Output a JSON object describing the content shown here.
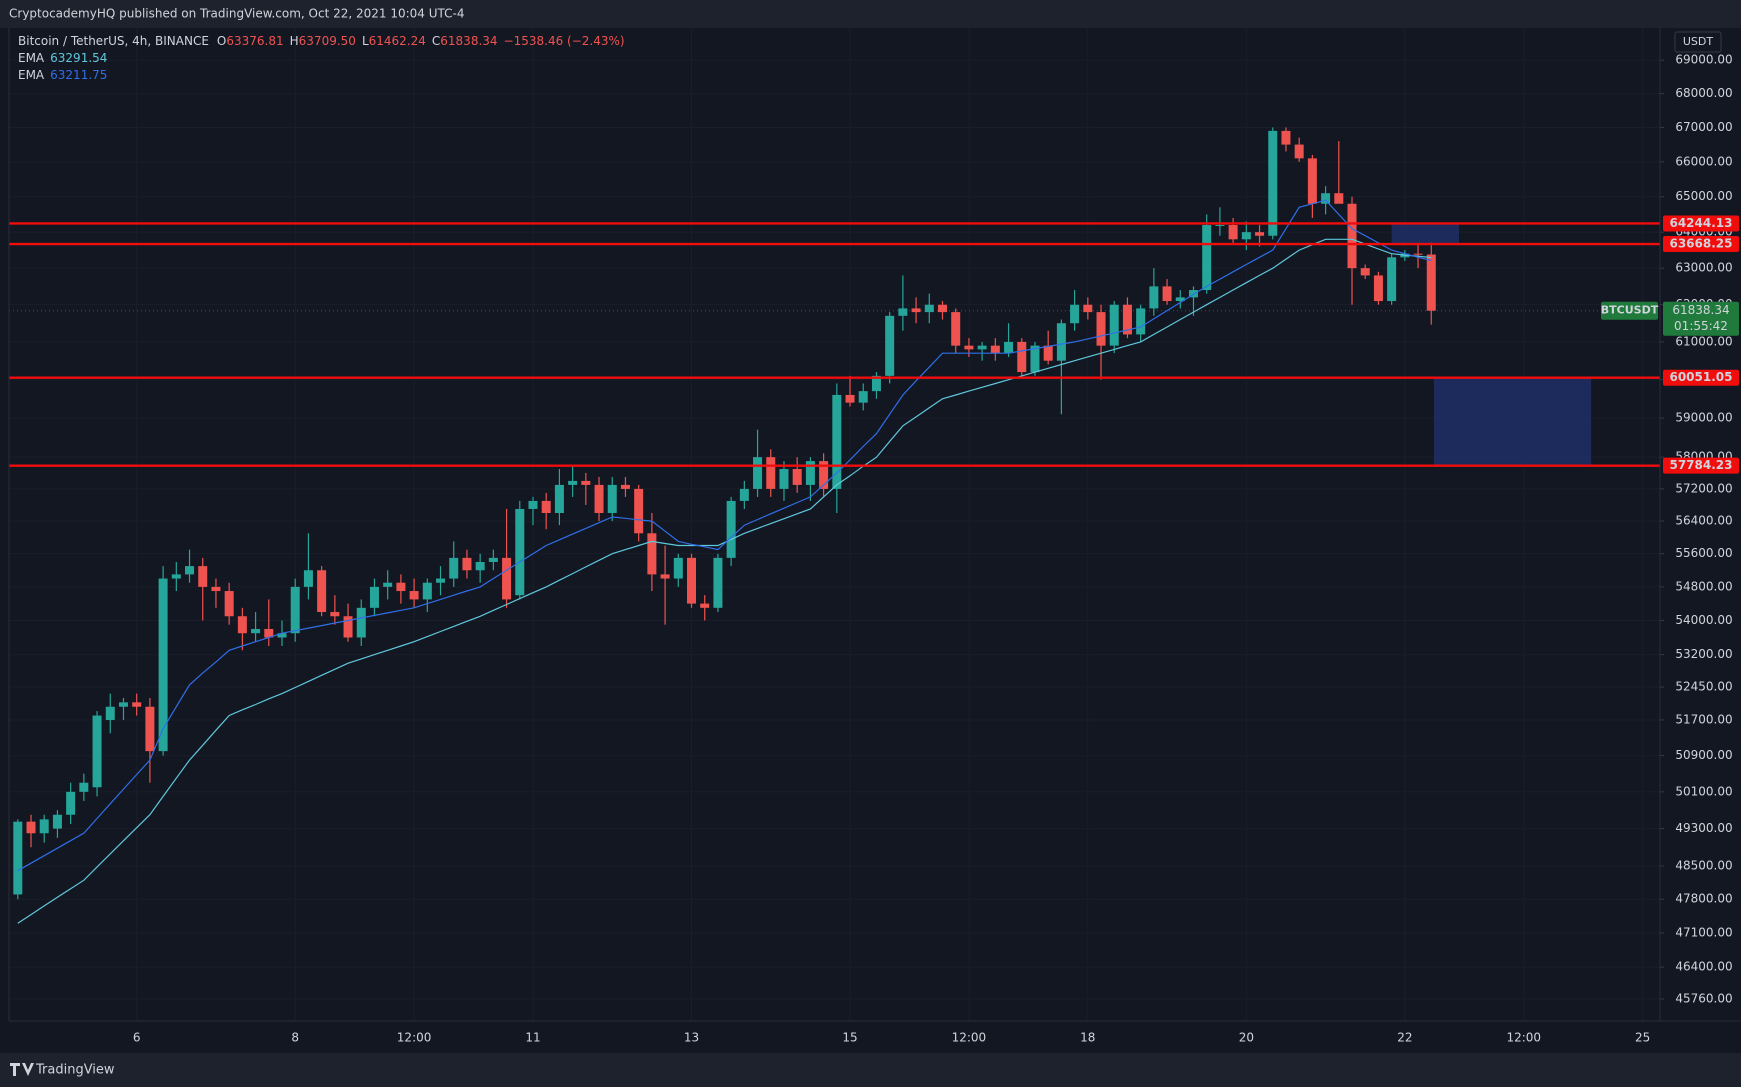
{
  "header": {
    "publisher": "CryptocademyHQ published on TradingView.com, Oct 22, 2021 10:04 UTC-4"
  },
  "footer": {
    "brand": "TradingView"
  },
  "chart_data": {
    "type": "candlestick",
    "symbol": "Bitcoin / TetherUS, 4h, BINANCE",
    "ticker": "BTCUSDT",
    "currency": "USDT",
    "countdown": "01:55:42",
    "ohlc_letters": [
      "O",
      "H",
      "L",
      "C"
    ],
    "ohlc_labels": [
      "63376.81",
      "63709.50",
      "61462.24",
      "61838.34"
    ],
    "change": "−1538.46 (−2.43%)",
    "log_scale": true,
    "up_color": "#26a69a",
    "down_color": "#ef5350",
    "categories": [
      null,
      null,
      null,
      null,
      null,
      null,
      null,
      null,
      null,
      "6",
      null,
      null,
      null,
      null,
      null,
      null,
      null,
      null,
      null,
      null,
      null,
      "8",
      null,
      null,
      null,
      null,
      null,
      null,
      null,
      null,
      "12:00",
      null,
      null,
      null,
      null,
      null,
      null,
      null,
      null,
      "11",
      null,
      null,
      null,
      null,
      null,
      null,
      null,
      null,
      null,
      null,
      null,
      "13",
      null,
      null,
      null,
      null,
      null,
      null,
      null,
      null,
      null,
      null,
      null,
      "15",
      null,
      null,
      null,
      null,
      null,
      null,
      null,
      null,
      "12:00",
      null,
      null,
      null,
      null,
      null,
      null,
      null,
      null,
      "18",
      null,
      null,
      null,
      null,
      null,
      null,
      null,
      null,
      null,
      null,
      null,
      "20",
      null,
      null,
      null,
      null,
      null,
      null,
      null,
      null,
      null,
      null,
      null,
      "22",
      null,
      null,
      null,
      null,
      null,
      null,
      null,
      null,
      "12:00",
      null,
      null,
      null,
      null,
      null,
      null,
      null,
      null,
      "25",
      null
    ],
    "open": [
      47900,
      49450,
      49200,
      49300,
      49600,
      50100,
      50200,
      51700,
      52000,
      52100,
      52000,
      51000,
      55000,
      55100,
      55300,
      54800,
      54700,
      54100,
      53700,
      53800,
      53600,
      53700,
      54800,
      55200,
      54200,
      54100,
      53600,
      54300,
      54800,
      54900,
      54700,
      54500,
      54900,
      55000,
      55500,
      55200,
      55400,
      55500,
      54600,
      56700,
      56900,
      56600,
      57300,
      57400,
      57300,
      56600,
      57300,
      57200,
      56100,
      55100,
      55000,
      55500,
      54400,
      54300,
      55500,
      56900,
      57200,
      58000,
      57200,
      57700,
      57300,
      57900,
      57200,
      59600,
      59400,
      59700,
      60100,
      61700,
      61900,
      61800,
      62000,
      61800,
      60900,
      60800,
      60900,
      60700,
      61000,
      60200,
      60900,
      60500,
      61500,
      62000,
      61800,
      60900,
      62000,
      61200,
      61900,
      62500,
      62100,
      62200,
      62400,
      64200,
      64200,
      63800,
      64000,
      63900,
      66900,
      66500,
      66100,
      64800,
      65100,
      64800,
      63000,
      62800,
      62100,
      63300,
      63400,
      63376.81,
      null,
      null,
      null,
      null,
      null,
      null,
      null,
      null,
      null,
      null,
      null,
      null,
      null,
      null,
      null,
      null,
      null
    ],
    "high": [
      49500,
      49600,
      49600,
      49700,
      50300,
      50500,
      51900,
      52300,
      52200,
      52300,
      52200,
      55300,
      55400,
      55700,
      55500,
      55000,
      54900,
      54300,
      54200,
      54500,
      54000,
      55000,
      56100,
      55300,
      54600,
      54400,
      54500,
      55000,
      55200,
      55100,
      55000,
      55000,
      55300,
      55900,
      55700,
      55600,
      55700,
      56700,
      56900,
      57000,
      57100,
      57700,
      57800,
      57600,
      57500,
      57500,
      57500,
      57300,
      56600,
      55800,
      55600,
      55600,
      54600,
      55600,
      57000,
      57400,
      58700,
      58200,
      57900,
      58000,
      58000,
      58100,
      59900,
      60100,
      59900,
      60200,
      61800,
      62800,
      62200,
      62300,
      62100,
      61900,
      61100,
      61000,
      61100,
      61500,
      61100,
      61000,
      61300,
      61600,
      62400,
      62200,
      62000,
      62100,
      62200,
      62000,
      63000,
      62700,
      62400,
      62500,
      64500,
      64700,
      64400,
      64300,
      64200,
      67000,
      67000,
      66700,
      66200,
      65300,
      66600,
      65000,
      63100,
      62900,
      63400,
      63500,
      63700,
      63709.5,
      null,
      null,
      null,
      null,
      null,
      null,
      null,
      null,
      null,
      null,
      null,
      null,
      null,
      null,
      null,
      null,
      null
    ],
    "low": [
      47800,
      48900,
      49000,
      49100,
      49400,
      49900,
      50000,
      51400,
      51700,
      51800,
      50300,
      50900,
      54700,
      54900,
      54000,
      54300,
      53900,
      53300,
      53500,
      53400,
      53400,
      53500,
      54500,
      54100,
      53900,
      53500,
      53400,
      54100,
      54500,
      54400,
      54300,
      54200,
      54600,
      54800,
      55000,
      54900,
      55200,
      54300,
      54500,
      56300,
      56200,
      56300,
      57000,
      56800,
      56400,
      56400,
      57000,
      55900,
      54700,
      53900,
      54800,
      54300,
      54000,
      54200,
      55300,
      56700,
      57000,
      57000,
      56900,
      57100,
      56900,
      57000,
      56600,
      59300,
      59200,
      59500,
      59900,
      61300,
      61500,
      61500,
      61600,
      60700,
      60600,
      60500,
      60500,
      60600,
      60100,
      60100,
      60400,
      59100,
      61300,
      61600,
      60000,
      60700,
      61100,
      61000,
      61700,
      62000,
      61900,
      61700,
      62300,
      63900,
      63700,
      63500,
      63600,
      63800,
      66300,
      66000,
      64400,
      64500,
      64900,
      62000,
      62700,
      62000,
      62000,
      63200,
      63000,
      61462.24,
      null,
      null,
      null,
      null,
      null,
      null,
      null,
      null,
      null,
      null,
      null,
      null,
      null,
      null,
      null,
      null,
      null
    ],
    "close": [
      49450,
      49200,
      49500,
      49600,
      50100,
      50300,
      51800,
      52000,
      52100,
      52000,
      51000,
      55000,
      55100,
      55300,
      54800,
      54700,
      54100,
      53700,
      53800,
      53600,
      53700,
      54800,
      55200,
      54200,
      54100,
      53600,
      54300,
      54800,
      54900,
      54700,
      54500,
      54900,
      55000,
      55500,
      55200,
      55400,
      55500,
      54500,
      56700,
      56900,
      56600,
      57300,
      57400,
      57300,
      56600,
      57300,
      57200,
      56100,
      55100,
      55000,
      55500,
      54400,
      54300,
      55500,
      56900,
      57200,
      58000,
      57200,
      57700,
      57300,
      57900,
      57200,
      59600,
      59400,
      59700,
      60100,
      61700,
      61900,
      61800,
      62000,
      61800,
      60900,
      60800,
      60900,
      60700,
      61000,
      60200,
      60900,
      60500,
      61500,
      62000,
      61800,
      60900,
      62000,
      61200,
      61900,
      62500,
      62100,
      62200,
      62400,
      64200,
      64200,
      63800,
      64000,
      63900,
      66900,
      66500,
      66100,
      64800,
      65100,
      64800,
      63000,
      62800,
      62100,
      63300,
      63400,
      63376,
      61838.34,
      null,
      null,
      null,
      null,
      null,
      null,
      null,
      null,
      null,
      null,
      null,
      null,
      null,
      null,
      null,
      null,
      null
    ],
    "overlays": [
      {
        "name": "EMA",
        "color": "#5fc8dc",
        "values": [
          47300,
          47480,
          47660,
          47840,
          48020,
          48200,
          48480,
          48760,
          49040,
          49320,
          49600,
          50000,
          50400,
          50800,
          51130,
          51470,
          51800,
          51930,
          52050,
          52180,
          52300,
          52440,
          52580,
          52720,
          52860,
          53000,
          53100,
          53200,
          53300,
          53400,
          53500,
          53620,
          53740,
          53860,
          53980,
          54100,
          54240,
          54380,
          54520,
          54660,
          54800,
          54960,
          55120,
          55280,
          55440,
          55600,
          55700,
          55800,
          55900,
          55850,
          55800,
          55800,
          55800,
          55800,
          55950,
          56100,
          56220,
          56340,
          56460,
          56580,
          56700,
          57000,
          57300,
          57530,
          57770,
          58000,
          58400,
          58800,
          59030,
          59270,
          59500,
          59600,
          59700,
          59800,
          59900,
          60000,
          60100,
          60200,
          60300,
          60400,
          60500,
          60600,
          60700,
          60800,
          60900,
          61000,
          61200,
          61400,
          61600,
          61800,
          62000,
          62200,
          62400,
          62600,
          62800,
          63000,
          63250,
          63500,
          63650,
          63800,
          63800,
          63800,
          63670,
          63530,
          63400,
          63360,
          63330,
          63291.54,
          null,
          null,
          null,
          null,
          null,
          null,
          null,
          null,
          null,
          null,
          null,
          null,
          null,
          null,
          null,
          null,
          null
        ]
      },
      {
        "name": "EMA",
        "color": "#2f6fe8",
        "values": [
          48400,
          48560,
          48720,
          48880,
          49040,
          49200,
          49520,
          49840,
          50160,
          50480,
          50800,
          51500,
          52000,
          52500,
          52770,
          53030,
          53300,
          53400,
          53500,
          53600,
          53700,
          53760,
          53820,
          53880,
          53940,
          54000,
          54060,
          54120,
          54180,
          54240,
          54300,
          54400,
          54500,
          54600,
          54700,
          54800,
          55000,
          55200,
          55400,
          55600,
          55800,
          55940,
          56080,
          56220,
          56360,
          56500,
          56470,
          56430,
          56400,
          56150,
          55900,
          55830,
          55770,
          55700,
          56000,
          56300,
          56440,
          56580,
          56720,
          56860,
          57000,
          57300,
          57600,
          57930,
          58270,
          58600,
          59100,
          59600,
          59970,
          60330,
          60700,
          60700,
          60700,
          60700,
          60700,
          60700,
          60760,
          60820,
          60880,
          60940,
          61000,
          61080,
          61160,
          61240,
          61320,
          61400,
          61620,
          61840,
          62060,
          62280,
          62500,
          62700,
          62900,
          63100,
          63300,
          63500,
          64100,
          64700,
          64800,
          64900,
          64500,
          64100,
          63900,
          63700,
          63500,
          63400,
          63300,
          63211.75,
          null,
          null,
          null,
          null,
          null,
          null,
          null,
          null,
          null,
          null,
          null,
          null,
          null,
          null,
          null,
          null,
          null
        ]
      }
    ],
    "levels": [
      {
        "value": 64244.13,
        "color": "#f20d0d"
      },
      {
        "value": 63668.25,
        "color": "#f20d0d"
      },
      {
        "value": 60051.05,
        "color": "#f20d0d"
      },
      {
        "value": 57784.23,
        "color": "#f20d0d"
      }
    ],
    "zones": [
      {
        "low": 63668.25,
        "high": 64244.13,
        "color": "#1f2f66"
      },
      {
        "low": 57784.23,
        "high": 60051.05,
        "color": "#1f2f66"
      }
    ],
    "ylim": [
      45320,
      69980
    ],
    "yticks": [
      {
        "value": 69000,
        "label": "69000.00"
      },
      {
        "value": 68000,
        "label": "68000.00"
      },
      {
        "value": 67000,
        "label": "67000.00"
      },
      {
        "value": 66000,
        "label": "66000.00"
      },
      {
        "value": 65000,
        "label": "65000.00"
      },
      {
        "value": 64000,
        "label": "64000.00"
      },
      {
        "value": 63000,
        "label": "63000.00"
      },
      {
        "value": 62000,
        "label": "62000.00"
      },
      {
        "value": 61000,
        "label": "61000.00"
      },
      {
        "value": 60000,
        "label": "60000.00"
      },
      {
        "value": 59000,
        "label": "59000.00"
      },
      {
        "value": 58000,
        "label": "58000.00"
      },
      {
        "value": 57200,
        "label": "57200.00"
      },
      {
        "value": 56400,
        "label": "56400.00"
      },
      {
        "value": 55600,
        "label": "55600.00"
      },
      {
        "value": 54800,
        "label": "54800.00"
      },
      {
        "value": 54000,
        "label": "54000.00"
      },
      {
        "value": 53200,
        "label": "53200.00"
      },
      {
        "value": 52450,
        "label": "52450.00"
      },
      {
        "value": 51700,
        "label": "51700.00"
      },
      {
        "value": 50900,
        "label": "50900.00"
      },
      {
        "value": 50100,
        "label": "50100.00"
      },
      {
        "value": 49300,
        "label": "49300.00"
      },
      {
        "value": 48500,
        "label": "48500.00"
      },
      {
        "value": 47800,
        "label": "47800.00"
      },
      {
        "value": 47100,
        "label": "47100.00"
      },
      {
        "value": 46400,
        "label": "46400.00"
      },
      {
        "value": 45760,
        "label": "45760.00"
      }
    ],
    "grid": true,
    "live_color": "#1f7a3c"
  }
}
